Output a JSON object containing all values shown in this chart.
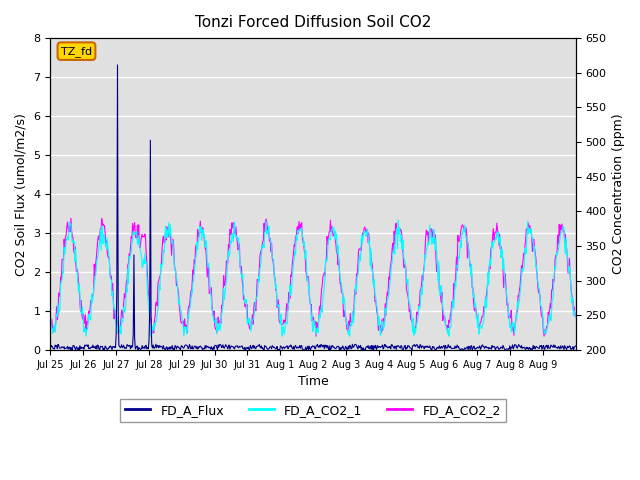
{
  "title": "Tonzi Forced Diffusion Soil CO2",
  "xlabel": "Time",
  "ylabel_left": "CO2 Soil Flux (umol/m2/s)",
  "ylabel_right": "CO2 Concentration (ppm)",
  "ylim_left": [
    0.0,
    8.0
  ],
  "ylim_right": [
    200,
    650
  ],
  "yticks_left": [
    0.0,
    1.0,
    2.0,
    3.0,
    4.0,
    5.0,
    6.0,
    7.0,
    8.0
  ],
  "yticks_right": [
    200,
    250,
    300,
    350,
    400,
    450,
    500,
    550,
    600,
    650
  ],
  "legend_labels": [
    "FD_A_Flux",
    "FD_A_CO2_1",
    "FD_A_CO2_2"
  ],
  "flux_color": "#00008B",
  "co2_1_color": "#00FFFF",
  "co2_2_color": "#FF00FF",
  "annotation_text": "TZ_fd",
  "annotation_bg": "#FFD700",
  "annotation_border": "#CC6600",
  "background_color": "#E0E0E0",
  "grid_color": "#FFFFFF",
  "xtick_labels": [
    "Jul 25",
    "Jul 26",
    "Jul 27",
    "Jul 28",
    "Jul 29",
    "Jul 30",
    "Jul 31",
    "Aug 1",
    "Aug 2",
    "Aug 3",
    "Aug 4",
    "Aug 5",
    "Aug 6",
    "Aug 7",
    "Aug 8",
    "Aug 9"
  ],
  "n_days": 16,
  "n_per_day": 48
}
